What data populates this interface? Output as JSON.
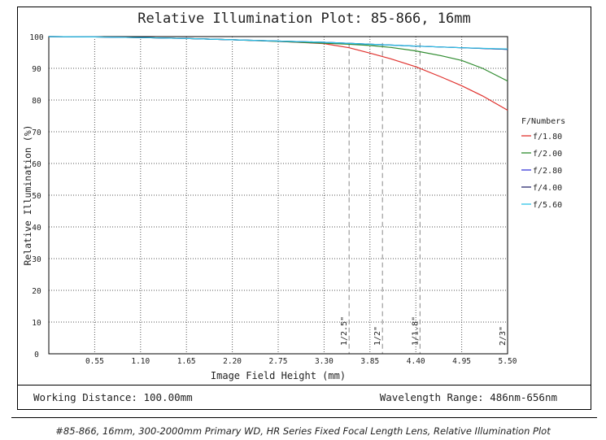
{
  "title": "Relative Illumination Plot: 85-866, 16mm",
  "caption": "#85-866, 16mm, 300-2000mm Primary WD, HR Series Fixed Focal Length Lens, Relative Illumination Plot",
  "working_distance": "Working Distance: 100.00mm",
  "wavelength_range": "Wavelength Range: 486nm-656nm",
  "legend_title": "F/Numbers",
  "chart_data": {
    "type": "line",
    "xlabel": "Image Field Height (mm)",
    "ylabel": "Relative Illumination (%)",
    "xlim": [
      0,
      5.5
    ],
    "ylim": [
      0,
      100
    ],
    "x_ticks": [
      "0.55",
      "1.10",
      "1.65",
      "2.20",
      "2.75",
      "3.30",
      "3.85",
      "4.40",
      "4.95",
      "5.50"
    ],
    "y_ticks": [
      "0",
      "10",
      "20",
      "30",
      "40",
      "50",
      "60",
      "70",
      "80",
      "90",
      "100"
    ],
    "grid": true,
    "legend_position": "right",
    "series": [
      {
        "name": "f/1.80",
        "color": "#e0322e",
        "x": [
          0,
          0.55,
          1.1,
          1.65,
          2.2,
          2.75,
          3.3,
          3.6,
          3.85,
          4.1,
          4.4,
          4.7,
          4.95,
          5.2,
          5.5
        ],
        "y": [
          100,
          99.9,
          99.7,
          99.4,
          99.0,
          98.5,
          97.8,
          96.5,
          94.8,
          93.0,
          90.5,
          87.3,
          84.5,
          81.3,
          76.8
        ]
      },
      {
        "name": "f/2.00",
        "color": "#2e8b2e",
        "x": [
          0,
          0.55,
          1.1,
          1.65,
          2.2,
          2.75,
          3.3,
          3.6,
          3.85,
          4.1,
          4.4,
          4.7,
          4.95,
          5.2,
          5.5
        ],
        "y": [
          100,
          99.9,
          99.7,
          99.4,
          99.0,
          98.5,
          97.9,
          97.6,
          97.2,
          96.6,
          95.5,
          94.0,
          92.5,
          90.0,
          86.0
        ]
      },
      {
        "name": "f/2.80",
        "color": "#3838d8",
        "x": [
          0,
          0.55,
          1.1,
          1.65,
          2.2,
          2.75,
          3.3,
          3.85,
          4.4,
          4.95,
          5.5
        ],
        "y": [
          100,
          99.9,
          99.7,
          99.4,
          99.0,
          98.6,
          98.2,
          97.6,
          97.0,
          96.5,
          96.0
        ]
      },
      {
        "name": "f/4.00",
        "color": "#2a2a6e",
        "x": [
          0,
          0.55,
          1.1,
          1.65,
          2.2,
          2.75,
          3.3,
          3.85,
          4.4,
          4.95,
          5.5
        ],
        "y": [
          100,
          99.9,
          99.7,
          99.4,
          99.0,
          98.6,
          98.2,
          97.6,
          97.0,
          96.5,
          96.0
        ]
      },
      {
        "name": "f/5.60",
        "color": "#2ec4e6",
        "x": [
          0,
          0.55,
          1.1,
          1.65,
          2.2,
          2.75,
          3.3,
          3.85,
          4.4,
          4.95,
          5.5
        ],
        "y": [
          100,
          99.9,
          99.7,
          99.4,
          99.0,
          98.6,
          98.2,
          97.6,
          97.0,
          96.5,
          96.1
        ]
      }
    ],
    "sensor_markers": [
      {
        "label": "1/2.5\"",
        "x": 3.6
      },
      {
        "label": "1/2\"",
        "x": 4.0
      },
      {
        "label": "1/1.8\"",
        "x": 4.45
      },
      {
        "label": "2/3\"",
        "x": 5.5
      }
    ]
  }
}
